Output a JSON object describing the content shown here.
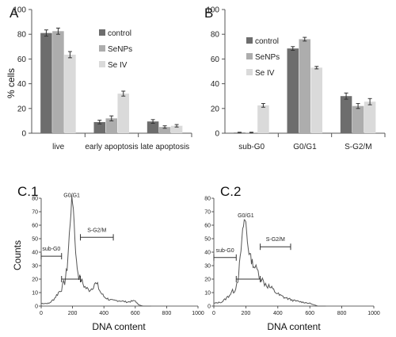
{
  "chart_data": [
    {
      "panel": "A",
      "type": "bar",
      "ylabel": "% cells",
      "ylim": [
        0,
        100
      ],
      "yticks": [
        "0",
        "20",
        "40",
        "60",
        "80",
        "100"
      ],
      "categories": [
        "live",
        "early apoptosis",
        "late apoptosis"
      ],
      "series": [
        {
          "name": "control",
          "color": "#6d6d6d",
          "values": [
            81,
            9,
            9.5
          ],
          "errors": [
            2.5,
            1.5,
            1.5
          ]
        },
        {
          "name": "SeNPs",
          "color": "#adadad",
          "values": [
            82.5,
            12,
            5
          ],
          "errors": [
            2.5,
            2,
            1
          ]
        },
        {
          "name": "Se IV",
          "color": "#dadada",
          "values": [
            63.5,
            32,
            6
          ],
          "errors": [
            2.5,
            2,
            1
          ]
        }
      ],
      "legend_position": "top-right"
    },
    {
      "panel": "B",
      "type": "bar",
      "ylim": [
        0,
        100
      ],
      "yticks": [
        "0",
        "20",
        "40",
        "60",
        "80",
        "100"
      ],
      "categories": [
        "sub-G0",
        "G0/G1",
        "S-G2/M"
      ],
      "series": [
        {
          "name": "control",
          "color": "#6d6d6d",
          "values": [
            0.5,
            68.5,
            30
          ],
          "errors": [
            0.3,
            1.5,
            2.5
          ]
        },
        {
          "name": "SeNPs",
          "color": "#adadad",
          "values": [
            0.5,
            76,
            22
          ],
          "errors": [
            0.3,
            1.5,
            2
          ]
        },
        {
          "name": "Se IV",
          "color": "#dadada",
          "values": [
            22.5,
            53,
            25.5
          ],
          "errors": [
            1.5,
            1,
            2.5
          ]
        }
      ],
      "legend_position": "top-right"
    },
    {
      "panel": "C.1",
      "type": "line",
      "xlabel": "DNA content",
      "ylabel": "Counts",
      "xlim": [
        0,
        1000
      ],
      "ylim": [
        0,
        80
      ],
      "xticks": [
        "0",
        "200",
        "400",
        "600",
        "800",
        "1000"
      ],
      "yticks": [
        "0",
        "10",
        "20",
        "30",
        "40",
        "50",
        "60",
        "70",
        "80"
      ],
      "x": [
        0,
        50,
        80,
        110,
        130,
        150,
        165,
        175,
        185,
        195,
        205,
        215,
        225,
        240,
        260,
        280,
        300,
        320,
        340,
        360,
        380,
        400,
        430,
        460,
        500,
        550,
        600,
        620,
        650,
        700
      ],
      "y": [
        2,
        2,
        5,
        10,
        13,
        18,
        28,
        45,
        62,
        79,
        74,
        50,
        32,
        22,
        18,
        14,
        12,
        13,
        17,
        15,
        10,
        7,
        5,
        4,
        4,
        3,
        4,
        1,
        0,
        0
      ],
      "annotations": [
        {
          "text": "G0/G1"
        },
        {
          "text": "sub-G0",
          "range": [
            0,
            130
          ]
        },
        {
          "text": "S-G2/M",
          "range": [
            250,
            460
          ]
        },
        {
          "text": "",
          "range": [
            130,
            250
          ]
        }
      ]
    },
    {
      "panel": "C.2",
      "type": "line",
      "xlabel": "DNA content",
      "ylabel": "",
      "xlim": [
        0,
        1000
      ],
      "ylim": [
        0,
        80
      ],
      "xticks": [
        "0",
        "200",
        "400",
        "600",
        "800",
        "1000"
      ],
      "yticks": [
        "0",
        "10",
        "20",
        "30",
        "40",
        "50",
        "60",
        "70",
        "80"
      ],
      "x": [
        0,
        50,
        80,
        110,
        130,
        150,
        165,
        180,
        190,
        200,
        210,
        220,
        235,
        250,
        270,
        290,
        310,
        330,
        350,
        380,
        410,
        450,
        500,
        550,
        600,
        650,
        700
      ],
      "y": [
        2,
        3,
        6,
        10,
        12,
        20,
        35,
        55,
        64,
        62,
        48,
        40,
        34,
        30,
        27,
        22,
        18,
        16,
        14,
        11,
        8,
        6,
        4,
        3,
        2,
        0,
        0
      ],
      "annotations": [
        {
          "text": "G0/G1"
        },
        {
          "text": "sub-G0",
          "range": [
            0,
            140
          ]
        },
        {
          "text": "S-G2/M",
          "range": [
            290,
            480
          ]
        },
        {
          "text": "",
          "range": [
            140,
            290
          ]
        }
      ]
    }
  ]
}
